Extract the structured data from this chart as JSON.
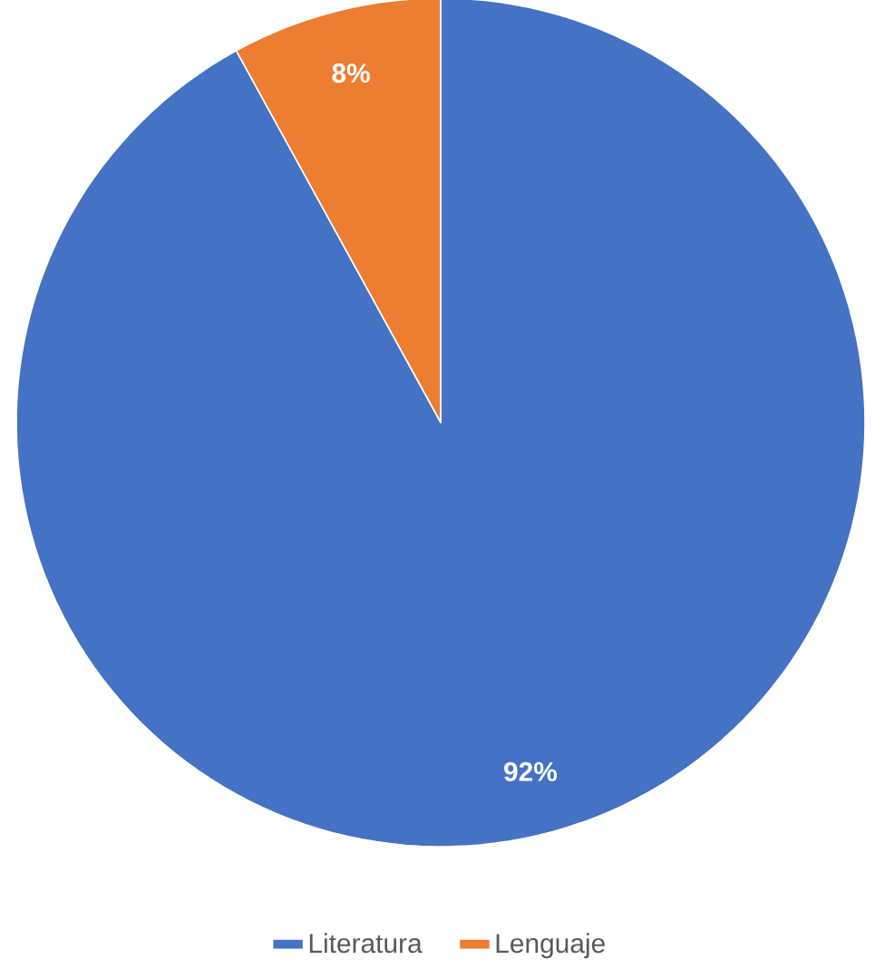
{
  "chart_data": {
    "type": "pie",
    "categories": [
      "Literatura",
      "Lenguaje"
    ],
    "values": [
      92,
      8
    ],
    "colors": [
      "#4472c4",
      "#ed7d31"
    ],
    "value_labels": [
      "92%",
      "8%"
    ],
    "legend": "bottom"
  }
}
